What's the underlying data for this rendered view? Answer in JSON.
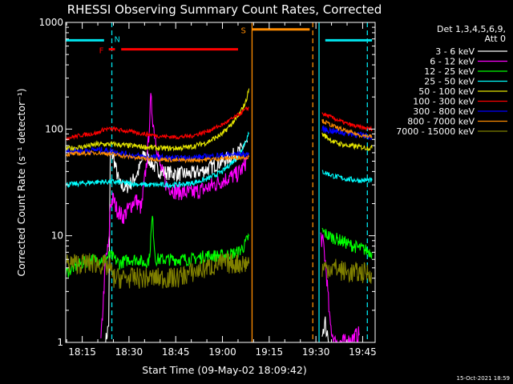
{
  "chart_data": {
    "type": "line",
    "title": "RHESSI Observing Summary Count Rates, Corrected",
    "xlabel": "Start Time (09-May-02 18:09:42)",
    "ylabel": "Corrected Count Rate (s⁻¹ detector⁻¹)",
    "y_scale": "log",
    "ylim": [
      1,
      1000
    ],
    "xlim": [
      "18:09:42",
      "19:49:00"
    ],
    "x_ticks": [
      "18:15",
      "18:30",
      "18:45",
      "19:00",
      "19:15",
      "19:30",
      "19:45"
    ],
    "y_ticks": [
      "1",
      "10",
      "100",
      "1000"
    ],
    "legend_header": [
      "Det 1,3,4,5,6,9,",
      "Att 0"
    ],
    "legend_position": "right, outside plot",
    "footer_date": "15-Oct-2021 18:59",
    "flag_bars": [
      {
        "label": "N",
        "color": "#00e5ee",
        "segments": [
          [
            "18:09:42",
            "18:22:00"
          ],
          [
            "19:33:00",
            "19:48:00"
          ]
        ],
        "level": 680
      },
      {
        "label": "F",
        "color": "#ff0000",
        "segments": [
          [
            "18:23:30",
            "18:25:30"
          ],
          [
            "18:27:30",
            "19:05:00"
          ]
        ],
        "level": 560
      },
      {
        "label": "S",
        "color": "#ff8c00",
        "segments": [
          [
            "19:09:30",
            "19:28:00"
          ]
        ],
        "level": 860
      }
    ],
    "verticals": [
      {
        "time": "18:24:30",
        "color": "#00e5ee",
        "style": "dashed"
      },
      {
        "time": "19:09:30",
        "color": "#ff8c00",
        "style": "solid"
      },
      {
        "time": "19:29:00",
        "color": "#ff8c00",
        "style": "dashed"
      },
      {
        "time": "19:31:00",
        "color": "#00e5ee",
        "style": "solid"
      },
      {
        "time": "19:46:30",
        "color": "#00e5ee",
        "style": "dashed"
      }
    ],
    "series": [
      {
        "name": "3 - 6 keV",
        "color": "#ffffff",
        "noise": 0.07,
        "points": [
          [
            "18:22:30",
            1
          ],
          [
            "18:23:30",
            1.5
          ],
          [
            "18:24:00",
            60
          ],
          [
            "18:25:00",
            55
          ],
          [
            "18:26:00",
            40
          ],
          [
            "18:27:00",
            30
          ],
          [
            "18:29:00",
            28
          ],
          [
            "18:31:00",
            32
          ],
          [
            "18:33:00",
            40
          ],
          [
            "18:35:00",
            60
          ],
          [
            "18:38:00",
            45
          ],
          [
            "18:40:00",
            40
          ],
          [
            "18:45:00",
            38
          ],
          [
            "18:50:00",
            38
          ],
          [
            "18:55:00",
            42
          ],
          [
            "19:00:00",
            50
          ],
          [
            "19:05:00",
            60
          ],
          [
            "19:07:00",
            70
          ],
          [
            "19:08:00",
            75
          ],
          null,
          [
            "19:32:00",
            1
          ],
          [
            "19:33:00",
            1.5
          ],
          [
            "19:34:00",
            1
          ]
        ]
      },
      {
        "name": "6 - 12 keV",
        "color": "#ff00ff",
        "noise": 0.08,
        "points": [
          [
            "18:21:00",
            1
          ],
          [
            "18:22:30",
            6
          ],
          [
            "18:23:30",
            8
          ],
          [
            "18:24:00",
            20
          ],
          [
            "18:25:00",
            22
          ],
          [
            "18:26:00",
            18
          ],
          [
            "18:28:00",
            15
          ],
          [
            "18:30:00",
            18
          ],
          [
            "18:32:00",
            22
          ],
          [
            "18:34:00",
            18
          ],
          [
            "18:36:00",
            60
          ],
          [
            "18:37:00",
            190
          ],
          [
            "18:38:00",
            100
          ],
          [
            "18:40:00",
            45
          ],
          [
            "18:42:00",
            30
          ],
          [
            "18:45:00",
            26
          ],
          [
            "18:50:00",
            25
          ],
          [
            "18:55:00",
            28
          ],
          [
            "19:00:00",
            33
          ],
          [
            "19:05:00",
            38
          ],
          [
            "19:07:00",
            45
          ],
          [
            "19:08:00",
            55
          ],
          null,
          [
            "19:31:30",
            10
          ],
          [
            "19:32:30",
            8
          ],
          [
            "19:33:30",
            4
          ],
          [
            "19:34:30",
            1.5
          ],
          [
            "19:36:00",
            1
          ],
          [
            "19:40:00",
            1
          ],
          [
            "19:44:00",
            1.2
          ]
        ]
      },
      {
        "name": "12 - 25 keV",
        "color": "#00ff00",
        "noise": 0.06,
        "points": [
          [
            "18:09:42",
            4.5
          ],
          [
            "18:12:00",
            5
          ],
          [
            "18:15:00",
            5.5
          ],
          [
            "18:18:00",
            6
          ],
          [
            "18:22:00",
            6
          ],
          [
            "18:24:00",
            6.5
          ],
          [
            "18:27:00",
            5.5
          ],
          [
            "18:30:00",
            6
          ],
          [
            "18:33:00",
            6
          ],
          [
            "18:35:00",
            5.5
          ],
          [
            "18:36:30",
            6
          ],
          [
            "18:37:30",
            15
          ],
          [
            "18:38:30",
            6
          ],
          [
            "18:45:00",
            6
          ],
          [
            "18:50:00",
            6
          ],
          [
            "18:55:00",
            6.5
          ],
          [
            "19:00:00",
            6.5
          ],
          [
            "19:05:00",
            7
          ],
          [
            "19:07:00",
            8
          ],
          [
            "19:08:30",
            10
          ],
          null,
          [
            "19:32:00",
            11
          ],
          [
            "19:34:00",
            10
          ],
          [
            "19:38:00",
            9
          ],
          [
            "19:42:00",
            8
          ],
          [
            "19:45:00",
            7.5
          ],
          [
            "19:48:00",
            7
          ]
        ]
      },
      {
        "name": "25 - 50 keV",
        "color": "#00ffff",
        "noise": 0.025,
        "points": [
          [
            "18:09:42",
            30
          ],
          [
            "18:15:00",
            31
          ],
          [
            "18:20:00",
            32
          ],
          [
            "18:25:00",
            32
          ],
          [
            "18:30:00",
            31
          ],
          [
            "18:35:00",
            30
          ],
          [
            "18:40:00",
            30
          ],
          [
            "18:45:00",
            30
          ],
          [
            "18:50:00",
            31
          ],
          [
            "18:55:00",
            34
          ],
          [
            "19:00:00",
            40
          ],
          [
            "19:05:00",
            55
          ],
          [
            "19:08:30",
            90
          ],
          null,
          [
            "19:32:00",
            40
          ],
          [
            "19:36:00",
            36
          ],
          [
            "19:40:00",
            34
          ],
          [
            "19:44:00",
            33
          ],
          [
            "19:48:00",
            33
          ]
        ]
      },
      {
        "name": "50 - 100 keV",
        "color": "#e6e600",
        "noise": 0.025,
        "points": [
          [
            "18:09:42",
            65
          ],
          [
            "18:15:00",
            68
          ],
          [
            "18:20:00",
            72
          ],
          [
            "18:25:00",
            72
          ],
          [
            "18:30:00",
            70
          ],
          [
            "18:35:00",
            68
          ],
          [
            "18:40:00",
            66
          ],
          [
            "18:45:00",
            66
          ],
          [
            "18:50:00",
            68
          ],
          [
            "18:55:00",
            75
          ],
          [
            "19:00:00",
            90
          ],
          [
            "19:05:00",
            130
          ],
          [
            "19:07:30",
            180
          ],
          [
            "19:08:30",
            240
          ],
          null,
          [
            "19:32:00",
            90
          ],
          [
            "19:36:00",
            75
          ],
          [
            "19:40:00",
            70
          ],
          [
            "19:44:00",
            68
          ],
          [
            "19:48:00",
            66
          ]
        ]
      },
      {
        "name": "100 - 300 keV",
        "color": "#ff0000",
        "noise": 0.02,
        "points": [
          [
            "18:09:42",
            82
          ],
          [
            "18:15:00",
            88
          ],
          [
            "18:20:00",
            92
          ],
          [
            "18:22:00",
            100
          ],
          [
            "18:25:00",
            100
          ],
          [
            "18:30:00",
            95
          ],
          [
            "18:35:00",
            90
          ],
          [
            "18:40:00",
            86
          ],
          [
            "18:45:00",
            84
          ],
          [
            "18:50:00",
            86
          ],
          [
            "18:55:00",
            95
          ],
          [
            "19:00:00",
            110
          ],
          [
            "19:05:00",
            135
          ],
          [
            "19:08:30",
            160
          ],
          null,
          [
            "19:32:00",
            140
          ],
          [
            "19:36:00",
            125
          ],
          [
            "19:40:00",
            112
          ],
          [
            "19:44:00",
            104
          ],
          [
            "19:48:00",
            100
          ]
        ]
      },
      {
        "name": "300 - 800 keV",
        "color": "#0000ff",
        "noise": 0.03,
        "points": [
          [
            "18:09:42",
            62
          ],
          [
            "18:15:00",
            62
          ],
          [
            "18:20:00",
            64
          ],
          [
            "18:25:00",
            62
          ],
          [
            "18:30:00",
            57
          ],
          [
            "18:35:00",
            55
          ],
          [
            "18:40:00",
            54
          ],
          [
            "18:45:00",
            53
          ],
          [
            "18:50:00",
            54
          ],
          [
            "18:55:00",
            55
          ],
          [
            "19:00:00",
            57
          ],
          [
            "19:05:00",
            58
          ],
          [
            "19:08:30",
            58
          ],
          null,
          [
            "19:32:00",
            100
          ],
          [
            "19:36:00",
            95
          ],
          [
            "19:40:00",
            92
          ],
          [
            "19:44:00",
            88
          ],
          [
            "19:48:00",
            85
          ]
        ]
      },
      {
        "name": "800 - 7000 keV",
        "color": "#ff8c00",
        "noise": 0.02,
        "points": [
          [
            "18:09:42",
            58
          ],
          [
            "18:15:00",
            59
          ],
          [
            "18:20:00",
            60
          ],
          [
            "18:25:00",
            58
          ],
          [
            "18:30:00",
            55
          ],
          [
            "18:35:00",
            53
          ],
          [
            "18:40:00",
            52
          ],
          [
            "18:45:00",
            51
          ],
          [
            "18:50:00",
            51
          ],
          [
            "18:55:00",
            52
          ],
          [
            "19:00:00",
            53
          ],
          [
            "19:05:00",
            54
          ],
          [
            "19:08:30",
            55
          ],
          null,
          [
            "19:32:00",
            120
          ],
          [
            "19:36:00",
            105
          ],
          [
            "19:40:00",
            95
          ],
          [
            "19:44:00",
            88
          ],
          [
            "19:48:00",
            85
          ]
        ]
      },
      {
        "name": "7000 - 15000 keV",
        "color": "#808000",
        "noise": 0.1,
        "points": [
          [
            "18:09:42",
            5.5
          ],
          [
            "18:15:00",
            5.5
          ],
          [
            "18:20:00",
            5.5
          ],
          [
            "18:24:00",
            5
          ],
          [
            "18:25:00",
            4
          ],
          [
            "18:30:00",
            4
          ],
          [
            "18:35:00",
            4
          ],
          [
            "18:40:00",
            4
          ],
          [
            "18:45:00",
            4
          ],
          [
            "18:50:00",
            4.5
          ],
          [
            "18:55:00",
            5
          ],
          [
            "19:00:00",
            5.5
          ],
          [
            "19:05:00",
            5.5
          ],
          [
            "19:08:30",
            5.5
          ],
          null,
          [
            "19:32:00",
            5
          ],
          [
            "19:36:00",
            5
          ],
          [
            "19:40:00",
            4.5
          ],
          [
            "19:44:00",
            4.5
          ],
          [
            "19:48:00",
            4.5
          ]
        ]
      }
    ]
  }
}
